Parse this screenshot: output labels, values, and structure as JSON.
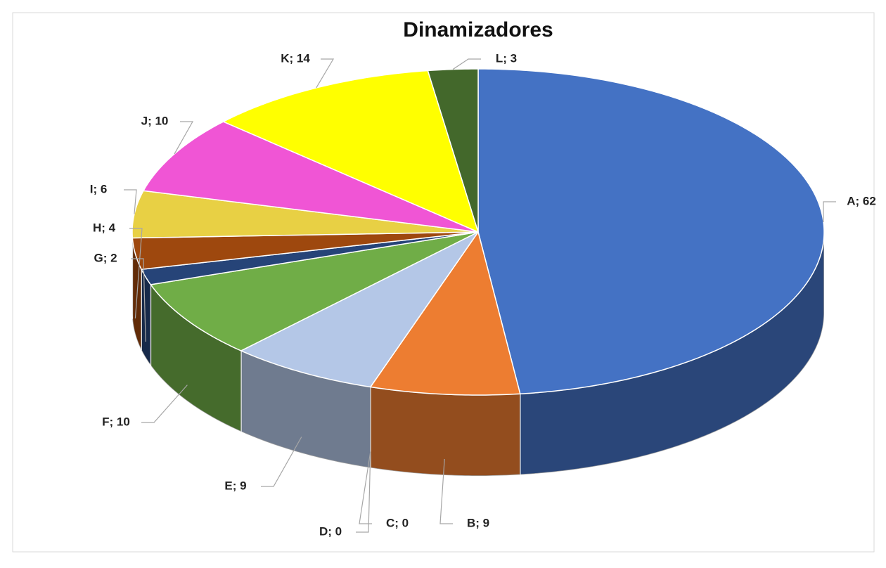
{
  "chart_data": {
    "type": "pie",
    "title": "Dinamizadores",
    "categories": [
      "A",
      "B",
      "C",
      "D",
      "E",
      "F",
      "G",
      "H",
      "I",
      "J",
      "K",
      "L"
    ],
    "values": [
      62,
      9,
      0,
      0,
      9,
      10,
      2,
      4,
      6,
      10,
      14,
      3
    ],
    "value_labels": [
      "A; 62",
      "B; 9",
      "C; 0",
      "D; 0",
      "E; 9",
      "F; 10",
      "G; 2",
      "H; 4",
      "I; 6",
      "J; 10",
      "K; 14",
      "L; 3"
    ],
    "colors": [
      "#4472c4",
      "#ed7d31",
      "#a5a5a5",
      "#ffc000",
      "#b4c7e7",
      "#70ad47",
      "#264478",
      "#9e480e",
      "#e8d044",
      "#f055d5",
      "#ffff00",
      "#43682b"
    ]
  }
}
